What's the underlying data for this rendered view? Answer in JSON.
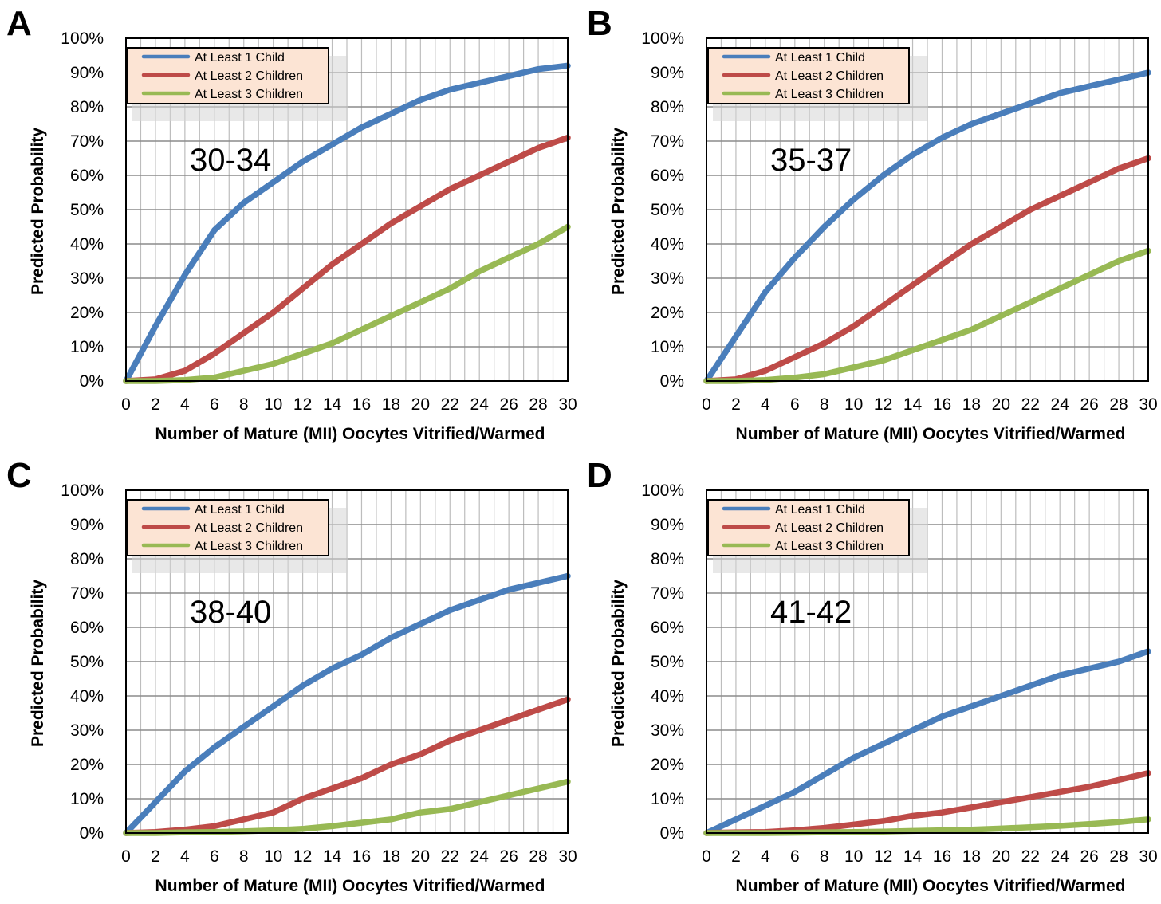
{
  "chart_data": [
    {
      "panel": "A",
      "type": "line",
      "annotation": "30-34",
      "xlabel": "Number of Mature (MII) Oocytes Vitrified/Warmed",
      "ylabel": "Predicted Probability",
      "xlim": [
        0,
        30
      ],
      "ylim": [
        0,
        100
      ],
      "xticks": [
        "0",
        "2",
        "4",
        "6",
        "8",
        "10",
        "12",
        "14",
        "16",
        "18",
        "20",
        "22",
        "24",
        "26",
        "28",
        "30"
      ],
      "yticks": [
        "0%",
        "10%",
        "20%",
        "30%",
        "40%",
        "50%",
        "60%",
        "70%",
        "80%",
        "90%",
        "100%"
      ],
      "grid": true,
      "legend_position": "top-left",
      "x": [
        0,
        2,
        4,
        6,
        8,
        10,
        12,
        14,
        16,
        18,
        20,
        22,
        24,
        26,
        28,
        30
      ],
      "series": [
        {
          "name": "At Least 1 Child",
          "color": "#4a7ebb",
          "values": [
            0,
            16,
            31,
            44,
            52,
            58,
            64,
            69,
            74,
            78,
            82,
            85,
            87,
            89,
            91,
            92
          ]
        },
        {
          "name": "At Least 2 Children",
          "color": "#be4b48",
          "values": [
            0,
            0.5,
            3,
            8,
            14,
            20,
            27,
            34,
            40,
            46,
            51,
            56,
            60,
            64,
            68,
            71
          ]
        },
        {
          "name": "At Least 3 Children",
          "color": "#98b954",
          "values": [
            0,
            0,
            0.3,
            1,
            3,
            5,
            8,
            11,
            15,
            19,
            23,
            27,
            32,
            36,
            40,
            45
          ]
        }
      ]
    },
    {
      "panel": "B",
      "type": "line",
      "annotation": "35-37",
      "xlabel": "Number of Mature (MII) Oocytes Vitrified/Warmed",
      "ylabel": "Predicted Probability",
      "xlim": [
        0,
        30
      ],
      "ylim": [
        0,
        100
      ],
      "xticks": [
        "0",
        "2",
        "4",
        "6",
        "8",
        "10",
        "12",
        "14",
        "16",
        "18",
        "20",
        "22",
        "24",
        "26",
        "28",
        "30"
      ],
      "yticks": [
        "0%",
        "10%",
        "20%",
        "30%",
        "40%",
        "50%",
        "60%",
        "70%",
        "80%",
        "90%",
        "100%"
      ],
      "grid": true,
      "legend_position": "top-left",
      "x": [
        0,
        2,
        4,
        6,
        8,
        10,
        12,
        14,
        16,
        18,
        20,
        22,
        24,
        26,
        28,
        30
      ],
      "series": [
        {
          "name": "At Least 1 Child",
          "color": "#4a7ebb",
          "values": [
            0,
            13,
            26,
            36,
            45,
            53,
            60,
            66,
            71,
            75,
            78,
            81,
            84,
            86,
            88,
            90
          ]
        },
        {
          "name": "At Least 2 Children",
          "color": "#be4b48",
          "values": [
            0,
            0.5,
            3,
            7,
            11,
            16,
            22,
            28,
            34,
            40,
            45,
            50,
            54,
            58,
            62,
            65
          ]
        },
        {
          "name": "At Least 3 Children",
          "color": "#98b954",
          "values": [
            0,
            0,
            0.3,
            1,
            2,
            4,
            6,
            9,
            12,
            15,
            19,
            23,
            27,
            31,
            35,
            38
          ]
        }
      ]
    },
    {
      "panel": "C",
      "type": "line",
      "annotation": "38-40",
      "xlabel": "Number of Mature (MII) Oocytes Vitrified/Warmed",
      "ylabel": "Predicted Probability",
      "xlim": [
        0,
        30
      ],
      "ylim": [
        0,
        100
      ],
      "xticks": [
        "0",
        "2",
        "4",
        "6",
        "8",
        "10",
        "12",
        "14",
        "16",
        "18",
        "20",
        "22",
        "24",
        "26",
        "28",
        "30"
      ],
      "yticks": [
        "0%",
        "10%",
        "20%",
        "30%",
        "40%",
        "50%",
        "60%",
        "70%",
        "80%",
        "90%",
        "100%"
      ],
      "grid": true,
      "legend_position": "top-left",
      "x": [
        0,
        2,
        4,
        6,
        8,
        10,
        12,
        14,
        16,
        18,
        20,
        22,
        24,
        26,
        28,
        30
      ],
      "series": [
        {
          "name": "At Least 1 Child",
          "color": "#4a7ebb",
          "values": [
            0,
            9,
            18,
            25,
            31,
            37,
            43,
            48,
            52,
            57,
            61,
            65,
            68,
            71,
            73,
            75
          ]
        },
        {
          "name": "At Least 2 Children",
          "color": "#be4b48",
          "values": [
            0,
            0.3,
            1,
            2,
            4,
            6,
            10,
            13,
            16,
            20,
            23,
            27,
            30,
            33,
            36,
            39
          ]
        },
        {
          "name": "At Least 3 Children",
          "color": "#98b954",
          "values": [
            0,
            0,
            0.2,
            0.3,
            0.5,
            0.8,
            1.2,
            2,
            3,
            4,
            6,
            7,
            9,
            11,
            13,
            15
          ]
        }
      ]
    },
    {
      "panel": "D",
      "type": "line",
      "annotation": "41-42",
      "xlabel": "Number of Mature (MII) Oocytes Vitrified/Warmed",
      "ylabel": "Predicted Probability",
      "xlim": [
        0,
        30
      ],
      "ylim": [
        0,
        100
      ],
      "xticks": [
        "0",
        "2",
        "4",
        "6",
        "8",
        "10",
        "12",
        "14",
        "16",
        "18",
        "20",
        "22",
        "24",
        "26",
        "28",
        "30"
      ],
      "yticks": [
        "0%",
        "10%",
        "20%",
        "30%",
        "40%",
        "50%",
        "60%",
        "70%",
        "80%",
        "90%",
        "100%"
      ],
      "grid": true,
      "legend_position": "top-left",
      "x": [
        0,
        2,
        4,
        6,
        8,
        10,
        12,
        14,
        16,
        18,
        20,
        22,
        24,
        26,
        28,
        30
      ],
      "series": [
        {
          "name": "At Least 1 Child",
          "color": "#4a7ebb",
          "values": [
            0,
            4,
            8,
            12,
            17,
            22,
            26,
            30,
            34,
            37,
            40,
            43,
            46,
            48,
            50,
            53
          ]
        },
        {
          "name": "At Least 2 Children",
          "color": "#be4b48",
          "values": [
            0,
            0.2,
            0.3,
            0.8,
            1.5,
            2.5,
            3.5,
            5,
            6,
            7.5,
            9,
            10.5,
            12,
            13.5,
            15.5,
            17.5
          ]
        },
        {
          "name": "At Least 3 Children",
          "color": "#98b954",
          "values": [
            0,
            0,
            0,
            0.1,
            0.2,
            0.3,
            0.4,
            0.6,
            0.8,
            1,
            1.3,
            1.7,
            2.1,
            2.6,
            3.2,
            4
          ]
        }
      ]
    }
  ]
}
